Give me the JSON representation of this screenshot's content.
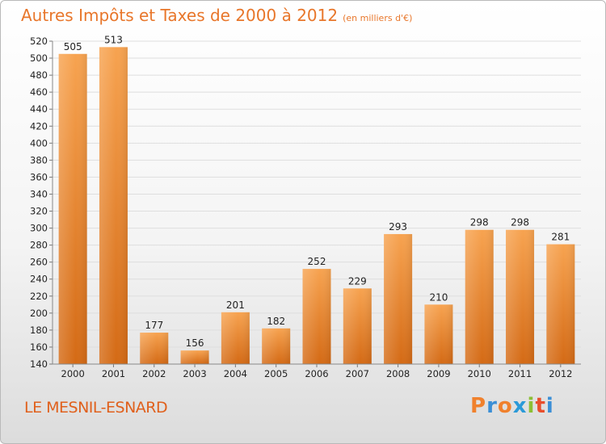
{
  "header": {
    "title": "Autres Impôts et Taxes de 2000 à 2012",
    "unit": "(en milliers d'€)"
  },
  "footer": {
    "city": "LE MESNIL-ESNARD",
    "logo": [
      "P",
      "r",
      "o",
      "x",
      "i",
      "t",
      "i"
    ],
    "logo_colors": [
      "#f0812d",
      "#3b8fd6",
      "#f0812d",
      "#2b9ad8",
      "#8cbf34",
      "#e94e2c",
      "#3b8fd6"
    ]
  },
  "colors": {
    "bar_top": "#f7a350",
    "bar_bottom": "#d46a15",
    "accent": "#e8762a"
  },
  "chart_data": {
    "type": "bar",
    "categories": [
      "2000",
      "2001",
      "2002",
      "2003",
      "2004",
      "2005",
      "2006",
      "2007",
      "2008",
      "2009",
      "2010",
      "2011",
      "2012"
    ],
    "values": [
      505,
      513,
      177,
      156,
      201,
      182,
      252,
      229,
      293,
      210,
      298,
      298,
      281
    ],
    "ylim": [
      140,
      520
    ],
    "ytick_step": 20,
    "grid": true,
    "legend": "none"
  }
}
